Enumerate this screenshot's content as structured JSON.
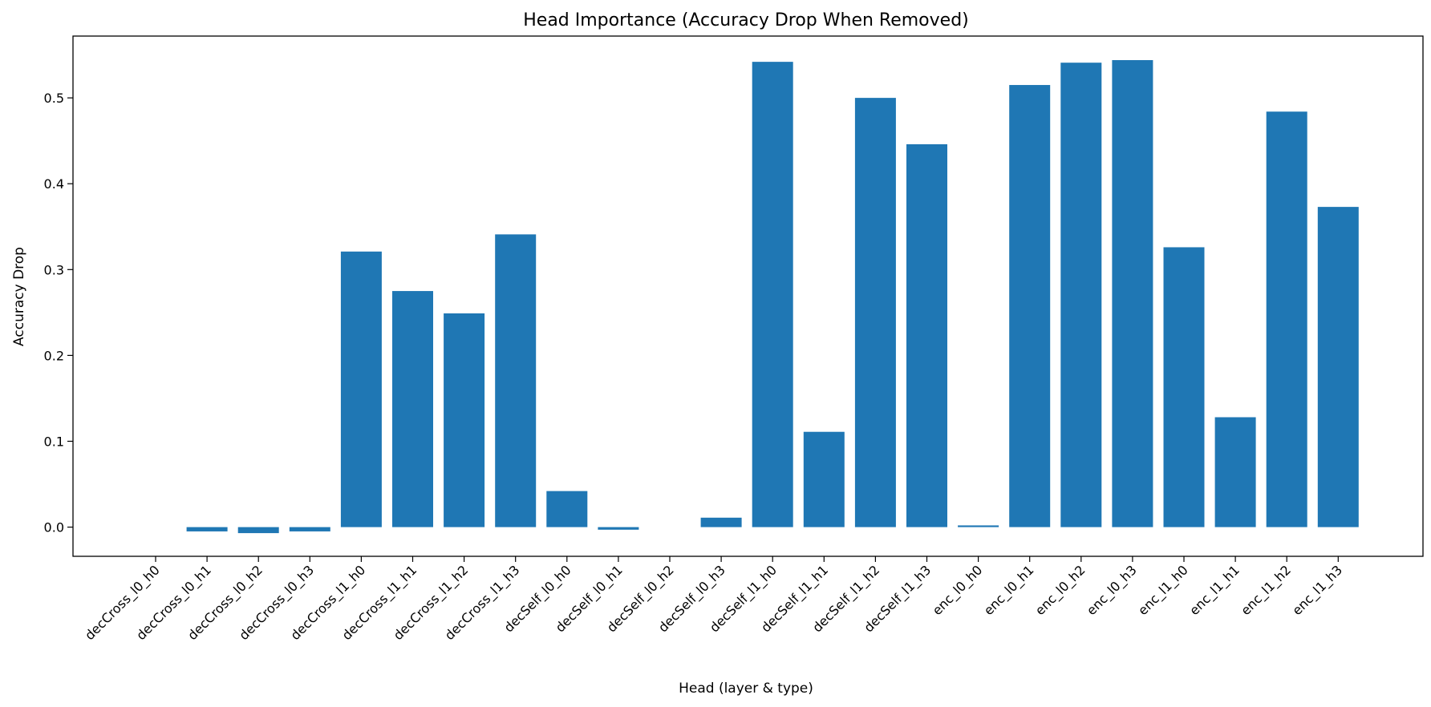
{
  "chart_data": {
    "type": "bar",
    "title": "Head Importance (Accuracy Drop When Removed)",
    "xlabel": "Head (layer & type)",
    "ylabel": "Accuracy Drop",
    "categories": [
      "decCross_l0_h0",
      "decCross_l0_h1",
      "decCross_l0_h2",
      "decCross_l0_h3",
      "decCross_l1_h0",
      "decCross_l1_h1",
      "decCross_l1_h2",
      "decCross_l1_h3",
      "decSelf_l0_h0",
      "decSelf_l0_h1",
      "decSelf_l0_h2",
      "decSelf_l0_h3",
      "decSelf_l1_h0",
      "decSelf_l1_h1",
      "decSelf_l1_h2",
      "decSelf_l1_h3",
      "enc_l0_h0",
      "enc_l0_h1",
      "enc_l0_h2",
      "enc_l0_h3",
      "enc_l1_h0",
      "enc_l1_h1",
      "enc_l1_h2",
      "enc_l1_h3"
    ],
    "values": [
      0.0,
      -0.005,
      -0.007,
      -0.005,
      0.321,
      0.275,
      0.249,
      0.341,
      0.042,
      -0.003,
      0.0,
      0.011,
      0.542,
      0.111,
      0.5,
      0.446,
      0.002,
      0.515,
      0.541,
      0.544,
      0.326,
      0.128,
      0.484,
      0.373
    ],
    "ylim": [
      -0.034,
      0.572
    ],
    "yticks": [
      0.0,
      0.1,
      0.2,
      0.3,
      0.4,
      0.5
    ],
    "grid": false,
    "bar_color": "#1f77b4"
  }
}
